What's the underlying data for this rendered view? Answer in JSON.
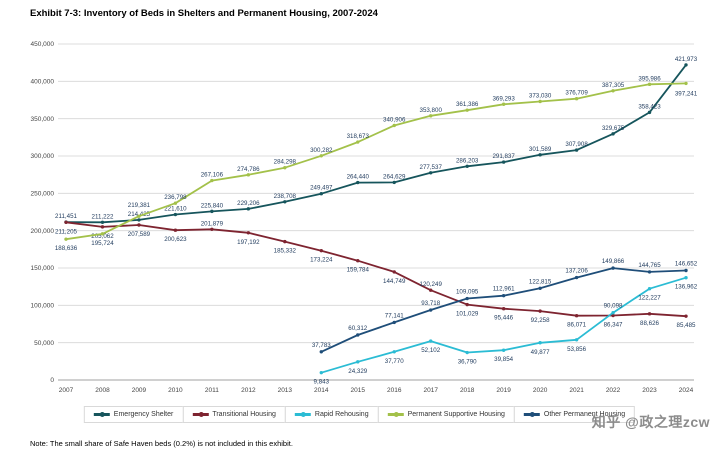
{
  "title": "Exhibit 7-3: Inventory of Beds in Shelters and Permanent Housing, 2007-2024",
  "note": "Note: The small share of Safe Haven beds (0.2%) is not included in this exhibit.",
  "watermark": "知乎 @政之理zcw",
  "chart_data": {
    "type": "line",
    "x": [
      2007,
      2008,
      2009,
      2010,
      2011,
      2012,
      2013,
      2014,
      2015,
      2016,
      2017,
      2018,
      2019,
      2020,
      2021,
      2022,
      2023,
      2024
    ],
    "ylim": [
      0,
      450000
    ],
    "ytick_step": 50000,
    "grid": true,
    "legend_position": "bottom",
    "label_color": "#1f3a5c",
    "series": [
      {
        "name": "Emergency Shelter",
        "color": "#16555c",
        "label_dy": -4,
        "label_dy_overrides": {},
        "values": [
          211451,
          211222,
          214425,
          221610,
          225840,
          229206,
          238708,
          249497,
          264440,
          264629,
          277537,
          286203,
          291837,
          301589,
          307908,
          329675,
          358423,
          421973
        ]
      },
      {
        "name": "Transitional Housing",
        "color": "#7e2430",
        "label_dy": 11,
        "label_dy_overrides": {
          "4": -4,
          "10": -4
        },
        "values": [
          211205,
          205062,
          207589,
          200623,
          201879,
          197192,
          185332,
          173224,
          159784,
          144749,
          120249,
          101029,
          95446,
          92258,
          86071,
          86347,
          88626,
          85485
        ]
      },
      {
        "name": "Rapid Rehousing",
        "color": "#2bbcd4",
        "label_dy": 11,
        "label_dy_overrides": {
          "15": -5
        },
        "values": [
          null,
          null,
          null,
          null,
          null,
          null,
          null,
          9843,
          24329,
          37770,
          52102,
          36790,
          39854,
          49877,
          53856,
          90098,
          122227,
          136962
        ]
      },
      {
        "name": "Permanent Supportive Housing",
        "color": "#a3c14a",
        "label_dy": -4,
        "label_dy_overrides": {
          "0": 11,
          "1": 11,
          "2": -9,
          "17": 12
        },
        "values": [
          188636,
          195724,
          219381,
          236798,
          267106,
          274786,
          284298,
          300282,
          318673,
          340906,
          353800,
          361386,
          369293,
          373030,
          376709,
          387305,
          395986,
          397241
        ]
      },
      {
        "name": "Other Permanent Housing",
        "color": "#1f4e79",
        "label_dy": -5,
        "label_dy_overrides": {},
        "values": [
          null,
          null,
          null,
          null,
          null,
          null,
          null,
          37783,
          60312,
          77141,
          93718,
          109095,
          112961,
          122815,
          137206,
          149866,
          144765,
          146652
        ]
      }
    ]
  }
}
